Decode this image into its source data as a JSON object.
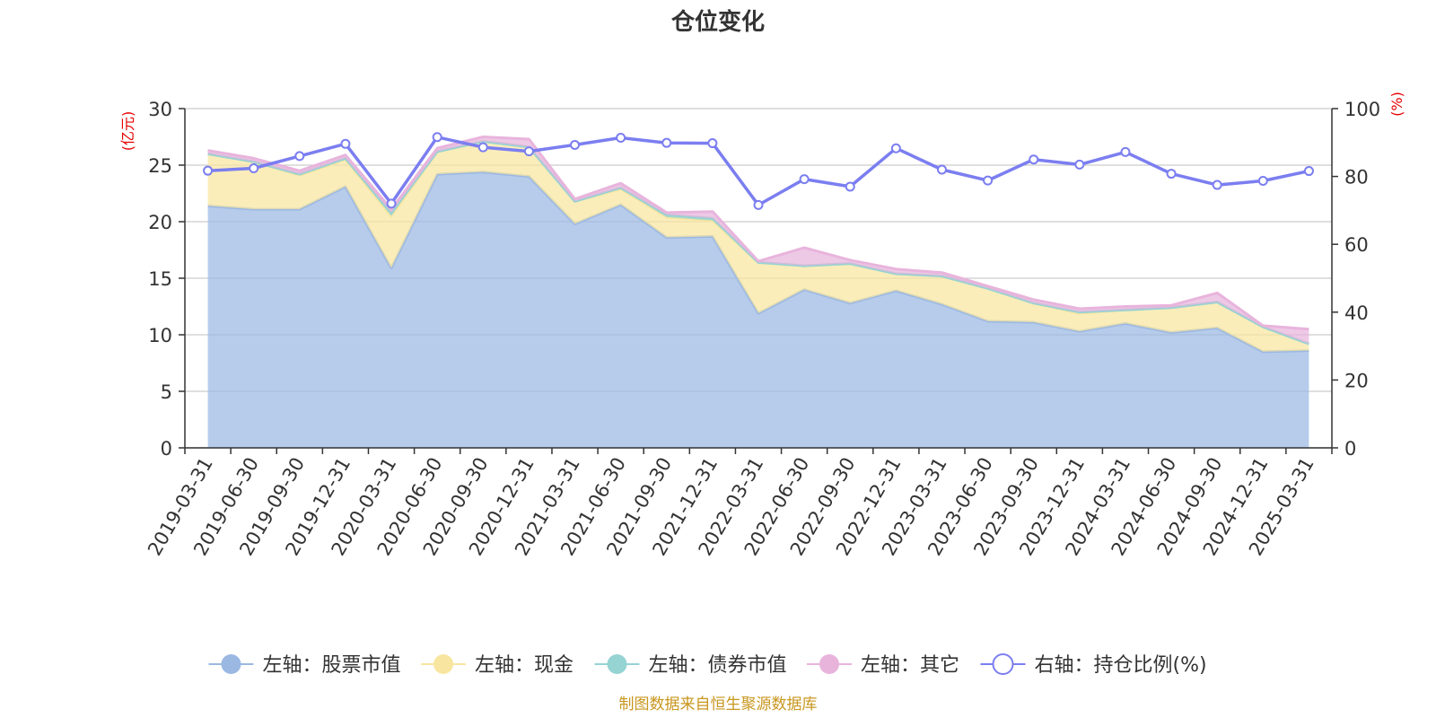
{
  "chart_data": {
    "type": "area",
    "title": "仓位变化",
    "source_note": "制图数据来自恒生聚源数据库",
    "left_axis": {
      "unit": "(亿元)",
      "min": 0,
      "max": 30,
      "ticks": [
        "0",
        "5",
        "10",
        "15",
        "20",
        "25",
        "30"
      ]
    },
    "right_axis": {
      "unit": "(%)",
      "min": 0,
      "max": 100,
      "ticks": [
        "0",
        "20",
        "40",
        "60",
        "80",
        "100"
      ]
    },
    "grid": true,
    "legend_position": "bottom",
    "categories": [
      "2019-03-31",
      "2019-06-30",
      "2019-09-30",
      "2019-12-31",
      "2020-03-31",
      "2020-06-30",
      "2020-09-30",
      "2020-12-31",
      "2021-03-31",
      "2021-06-30",
      "2021-09-30",
      "2021-12-31",
      "2022-03-31",
      "2022-06-30",
      "2022-09-30",
      "2022-12-31",
      "2023-03-31",
      "2023-06-30",
      "2023-09-30",
      "2023-12-31",
      "2024-03-31",
      "2024-06-30",
      "2024-09-30",
      "2024-12-31",
      "2025-03-31"
    ],
    "series": [
      {
        "name": "左轴：股票市值",
        "axis": "left",
        "type": "area",
        "color": "#9bb8e3",
        "values": [
          21.4,
          21.1,
          21.1,
          23.1,
          15.9,
          24.2,
          24.4,
          24.0,
          19.8,
          21.5,
          18.6,
          18.7,
          11.9,
          14.0,
          12.8,
          13.9,
          12.7,
          11.2,
          11.1,
          10.3,
          11.0,
          10.2,
          10.6,
          8.5,
          8.6
        ]
      },
      {
        "name": "左轴：现金",
        "axis": "left",
        "type": "area",
        "color": "#f8e6a0",
        "values": [
          4.6,
          4.2,
          3.0,
          2.4,
          4.6,
          2.0,
          2.7,
          2.6,
          2.0,
          1.4,
          1.8,
          1.4,
          4.5,
          2.1,
          3.5,
          1.5,
          2.5,
          2.9,
          1.7,
          1.6,
          1.2,
          2.2,
          2.3,
          2.2,
          0.6
        ]
      },
      {
        "name": "左轴：债券市值",
        "axis": "left",
        "type": "area",
        "color": "#96d3d3",
        "values": [
          0.0,
          0.0,
          0.1,
          0.1,
          0.3,
          0.0,
          0.0,
          0.0,
          0.0,
          0.1,
          0.2,
          0.2,
          0.0,
          0.0,
          0.0,
          0.0,
          0.0,
          0.0,
          0.0,
          0.1,
          0.0,
          0.0,
          0.0,
          0.0,
          0.0
        ]
      },
      {
        "name": "左轴：其它",
        "axis": "left",
        "type": "area",
        "color": "#e8b4dc",
        "values": [
          0.3,
          0.3,
          0.3,
          0.3,
          0.3,
          0.3,
          0.4,
          0.7,
          0.2,
          0.4,
          0.2,
          0.6,
          0.1,
          1.6,
          0.3,
          0.4,
          0.3,
          0.2,
          0.3,
          0.3,
          0.3,
          0.2,
          0.8,
          0.1,
          1.3
        ]
      },
      {
        "name": "右轴：持仓比例(%)",
        "axis": "right",
        "type": "line",
        "color": "#7b7ef0",
        "values": [
          81.7,
          82.4,
          86.0,
          89.6,
          72.0,
          91.6,
          88.6,
          87.4,
          89.3,
          91.4,
          89.9,
          89.8,
          71.6,
          79.2,
          77.0,
          88.3,
          82.0,
          78.8,
          85.0,
          83.5,
          87.2,
          80.8,
          77.5,
          78.7,
          81.6
        ]
      }
    ]
  }
}
